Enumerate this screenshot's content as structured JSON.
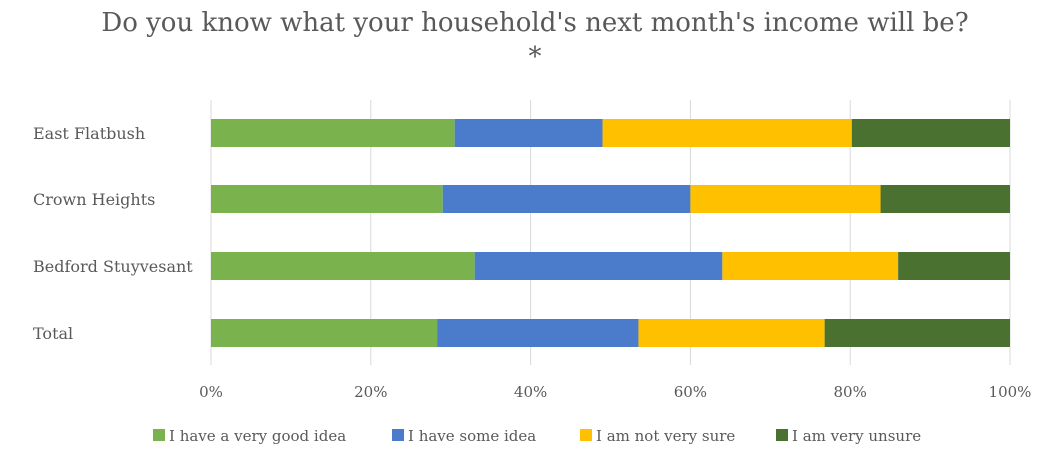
{
  "chart_data": {
    "type": "bar",
    "orientation": "horizontal",
    "stacked": "percent",
    "title": "Do you know what your household's next month's income will be? *",
    "categories": [
      "East Flatbush",
      "Crown Heights",
      "Bedford Stuyvesant",
      "Total"
    ],
    "series": [
      {
        "name": "I have a very good idea",
        "color": "#7ab24e",
        "values": [
          30.5,
          29.0,
          33.0,
          28.3
        ]
      },
      {
        "name": "I have some idea",
        "color": "#4a7ccb",
        "values": [
          18.5,
          31.0,
          31.0,
          25.2
        ]
      },
      {
        "name": "I am not very sure",
        "color": "#ffc000",
        "values": [
          31.2,
          23.8,
          22.0,
          23.3
        ]
      },
      {
        "name": "I am very unsure",
        "color": "#4b7130",
        "values": [
          19.8,
          16.2,
          14.0,
          23.2
        ]
      }
    ],
    "x_ticks": [
      "0%",
      "20%",
      "40%",
      "60%",
      "80%",
      "100%"
    ],
    "xlim": [
      0,
      100
    ],
    "grid": true,
    "legend_position": "bottom",
    "xlabel": "",
    "ylabel": ""
  }
}
